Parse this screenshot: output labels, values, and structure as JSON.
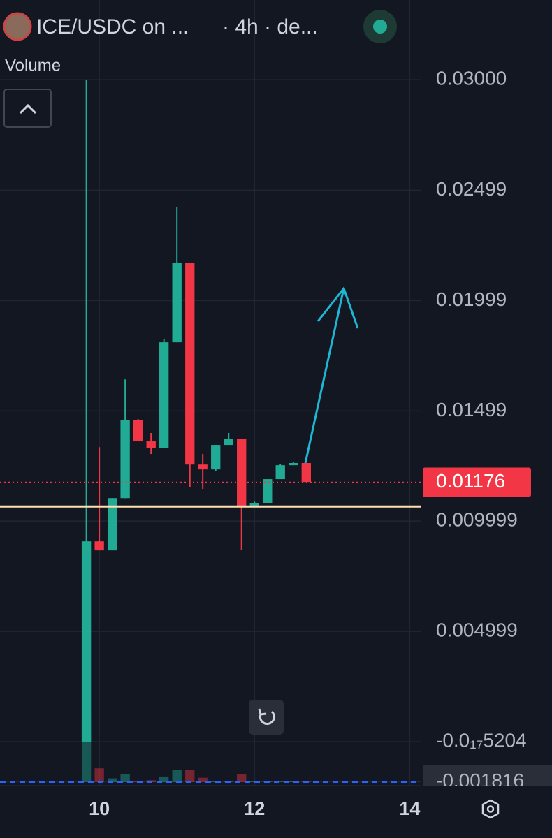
{
  "chart_data": {
    "type": "candlestick",
    "title": "ICE/USDC on ...",
    "subtitle": "· 4h · de...",
    "x": [
      9.833,
      10,
      10.167,
      10.333,
      10.5,
      10.667,
      10.833,
      11,
      11.167,
      11.333,
      11.5,
      11.667,
      11.833,
      12,
      12.167,
      12.333,
      12.5,
      12.667
    ],
    "open": [
      0,
      0.00908,
      0.00867,
      0.01104,
      0.01456,
      0.01361,
      0.01332,
      0.0181,
      0.02171,
      0.01256,
      0.01234,
      0.01345,
      0.01373,
      0.0107,
      0.01082,
      0.0119,
      0.01253,
      0.01263
    ],
    "high": [
      0.03,
      0.01335,
      0.01104,
      0.01642,
      0.01462,
      0.01399,
      0.01826,
      0.02424,
      0.02171,
      0.01304,
      0.01345,
      0.01399,
      0.01373,
      0.01088,
      0.0119,
      0.01259,
      0.01269,
      0.01263
    ],
    "low": [
      0,
      0.00867,
      0.00867,
      0.01104,
      0.01361,
      0.01304,
      0.01332,
      0.0181,
      0.01155,
      0.01146,
      0.01225,
      0.01345,
      0.0087,
      0.01063,
      0.01082,
      0.0119,
      0.01253,
      0.01177
    ],
    "close": [
      0.00908,
      0.00867,
      0.01104,
      0.01456,
      0.01361,
      0.01332,
      0.0181,
      0.02171,
      0.01256,
      0.01234,
      0.01345,
      0.01373,
      0.0107,
      0.01082,
      0.0119,
      0.01253,
      0.01263,
      0.01177
    ],
    "up_color": "#22ab94",
    "down_color": "#f23645",
    "volume": {
      "name": "Volume",
      "lim": [
        0,
        100
      ],
      "values": [
        100,
        22,
        6,
        13,
        2,
        3,
        9,
        19,
        19,
        7,
        1,
        1,
        13,
        1,
        2,
        2,
        2,
        1
      ]
    },
    "last_price": 0.01176,
    "hline": {
      "value": 0.01066,
      "color": "#ffe0b2"
    },
    "xlim": [
      8.72,
      14.15
    ],
    "xticks": [
      10,
      12,
      14
    ],
    "ylim": [
      -0.00199,
      0.03361
    ],
    "yticks": [
      {
        "value": 0.03,
        "label": "0.03000"
      },
      0.02499,
      0.01999,
      0.01499,
      0.009999,
      0.004999,
      {
        "value": -5.204e-18,
        "label": "-0.0₁₇5204"
      },
      -0.001816
    ],
    "grid": true
  }
}
